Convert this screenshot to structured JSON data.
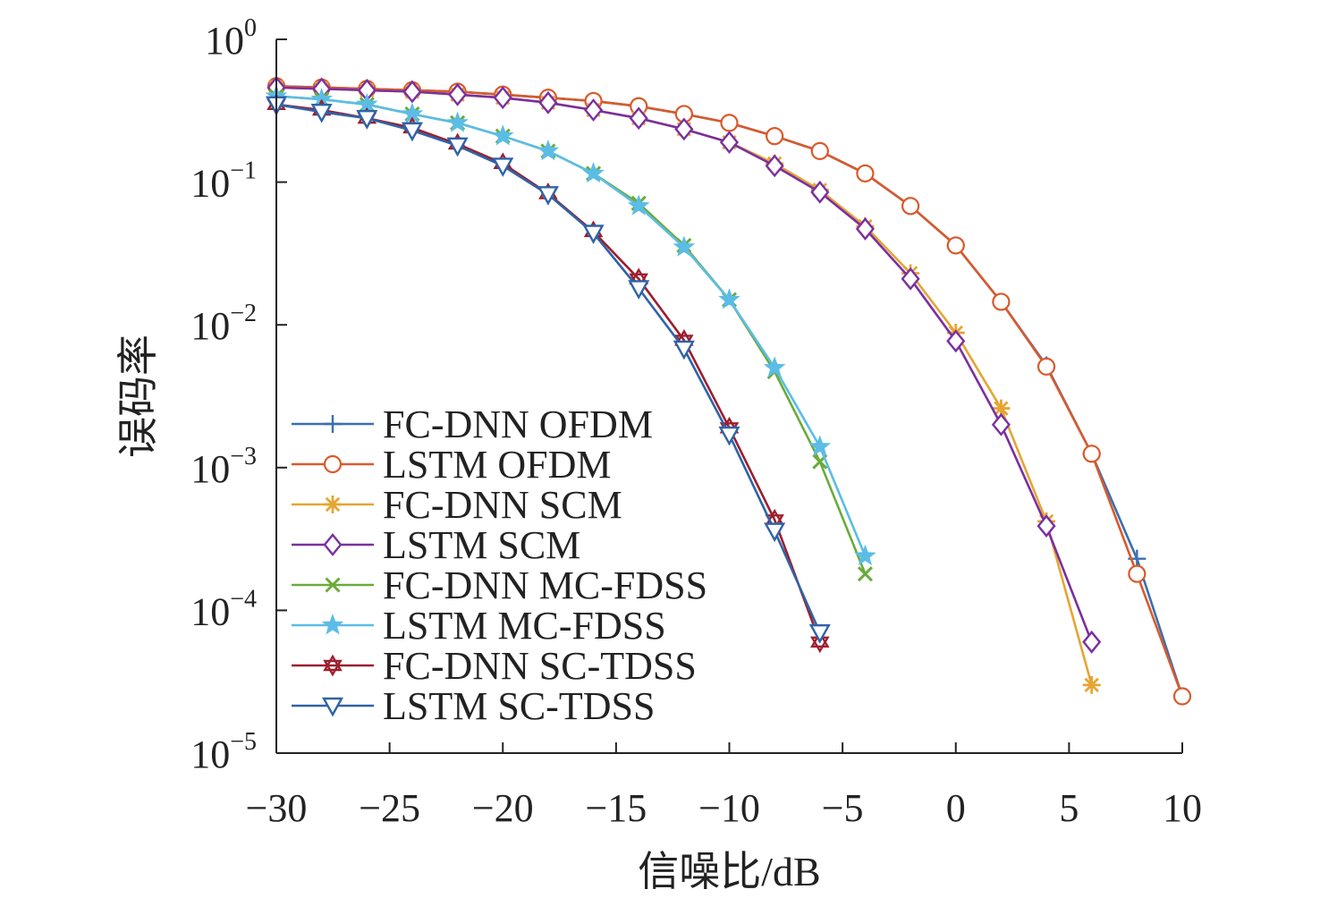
{
  "chart_data": {
    "type": "line",
    "title": "",
    "xlabel": "信噪比/dB",
    "ylabel": "误码率",
    "xlim": [
      -30,
      10
    ],
    "ylim": [
      1e-05,
      1
    ],
    "yscale": "log",
    "grid": false,
    "legend_position": "lower-left",
    "x_ticks": [
      -30,
      -25,
      -20,
      -15,
      -10,
      -5,
      0,
      5,
      10
    ],
    "x_tick_labels": [
      "−30",
      "−25",
      "−20",
      "−15",
      "−10",
      "−5",
      "0",
      "5",
      "10"
    ],
    "y_ticks": [
      {
        "value": 1,
        "base": "10",
        "exp": "0"
      },
      {
        "value": 0.1,
        "base": "10",
        "exp": "−1"
      },
      {
        "value": 0.01,
        "base": "10",
        "exp": "−2"
      },
      {
        "value": 0.001,
        "base": "10",
        "exp": "−3"
      },
      {
        "value": 0.0001,
        "base": "10",
        "exp": "−4"
      },
      {
        "value": 1e-05,
        "base": "10",
        "exp": "−5"
      }
    ],
    "series": [
      {
        "name": "FC-DNN OFDM",
        "color": "#3a6fb0",
        "marker": "plus",
        "x": [
          -30,
          -28,
          -26,
          -24,
          -22,
          -20,
          -18,
          -16,
          -14,
          -12,
          -10,
          -8,
          -6,
          -4,
          -2,
          0,
          2,
          4,
          6,
          8,
          10
        ],
        "y": [
          0.47,
          0.46,
          0.45,
          0.44,
          0.43,
          0.41,
          0.39,
          0.37,
          0.34,
          0.3,
          0.26,
          0.21,
          0.165,
          0.115,
          0.068,
          0.036,
          0.0145,
          0.0052,
          0.00125,
          0.00023,
          2.5e-05
        ]
      },
      {
        "name": "LSTM OFDM",
        "color": "#d95a2b",
        "marker": "circle",
        "x": [
          -30,
          -28,
          -26,
          -24,
          -22,
          -20,
          -18,
          -16,
          -14,
          -12,
          -10,
          -8,
          -6,
          -4,
          -2,
          0,
          2,
          4,
          6,
          8,
          10
        ],
        "y": [
          0.47,
          0.46,
          0.45,
          0.44,
          0.43,
          0.41,
          0.39,
          0.37,
          0.34,
          0.3,
          0.26,
          0.21,
          0.165,
          0.115,
          0.068,
          0.036,
          0.0145,
          0.0051,
          0.00125,
          0.00018,
          2.5e-05
        ]
      },
      {
        "name": "FC-DNN SCM",
        "color": "#e6a532",
        "marker": "asterisk",
        "x": [
          -30,
          -28,
          -26,
          -24,
          -22,
          -20,
          -18,
          -16,
          -14,
          -12,
          -10,
          -8,
          -6,
          -4,
          -2,
          0,
          2,
          4,
          6
        ],
        "y": [
          0.46,
          0.45,
          0.44,
          0.43,
          0.41,
          0.39,
          0.36,
          0.32,
          0.28,
          0.235,
          0.19,
          0.135,
          0.088,
          0.049,
          0.023,
          0.0088,
          0.0026,
          0.00042,
          3e-05
        ]
      },
      {
        "name": "LSTM SCM",
        "color": "#7b2fa0",
        "marker": "diamond",
        "x": [
          -30,
          -28,
          -26,
          -24,
          -22,
          -20,
          -18,
          -16,
          -14,
          -12,
          -10,
          -8,
          -6,
          -4,
          -2,
          0,
          2,
          4,
          6
        ],
        "y": [
          0.46,
          0.45,
          0.44,
          0.43,
          0.41,
          0.39,
          0.36,
          0.32,
          0.28,
          0.235,
          0.19,
          0.13,
          0.085,
          0.047,
          0.021,
          0.0077,
          0.002,
          0.00039,
          6e-05
        ]
      },
      {
        "name": "FC-DNN MC-FDSS",
        "color": "#6aab3a",
        "marker": "x",
        "x": [
          -30,
          -28,
          -26,
          -24,
          -22,
          -20,
          -18,
          -16,
          -14,
          -12,
          -10,
          -8,
          -6,
          -4
        ],
        "y": [
          0.4,
          0.38,
          0.35,
          0.3,
          0.26,
          0.21,
          0.165,
          0.115,
          0.071,
          0.036,
          0.015,
          0.0047,
          0.0011,
          0.00018
        ]
      },
      {
        "name": "LSTM MC-FDSS",
        "color": "#5bbde6",
        "marker": "star",
        "x": [
          -30,
          -28,
          -26,
          -24,
          -22,
          -20,
          -18,
          -16,
          -14,
          -12,
          -10,
          -8,
          -6,
          -4
        ],
        "y": [
          0.4,
          0.38,
          0.35,
          0.3,
          0.26,
          0.21,
          0.165,
          0.115,
          0.068,
          0.035,
          0.015,
          0.005,
          0.0014,
          0.00024
        ]
      },
      {
        "name": "FC-DNN SC-TDSS",
        "color": "#9c1f2e",
        "marker": "hexagram",
        "x": [
          -30,
          -28,
          -26,
          -24,
          -22,
          -20,
          -18,
          -16,
          -14,
          -12,
          -10,
          -8,
          -6
        ],
        "y": [
          0.35,
          0.32,
          0.28,
          0.24,
          0.185,
          0.135,
          0.083,
          0.045,
          0.021,
          0.0078,
          0.0019,
          0.00043,
          6e-05
        ]
      },
      {
        "name": "LSTM SC-TDSS",
        "color": "#2f63a8",
        "marker": "triangle-down",
        "x": [
          -30,
          -28,
          -26,
          -24,
          -22,
          -20,
          -18,
          -16,
          -14,
          -12,
          -10,
          -8,
          -6
        ],
        "y": [
          0.35,
          0.31,
          0.28,
          0.23,
          0.18,
          0.13,
          0.082,
          0.044,
          0.018,
          0.0068,
          0.0017,
          0.00036,
          7e-05
        ]
      }
    ]
  }
}
